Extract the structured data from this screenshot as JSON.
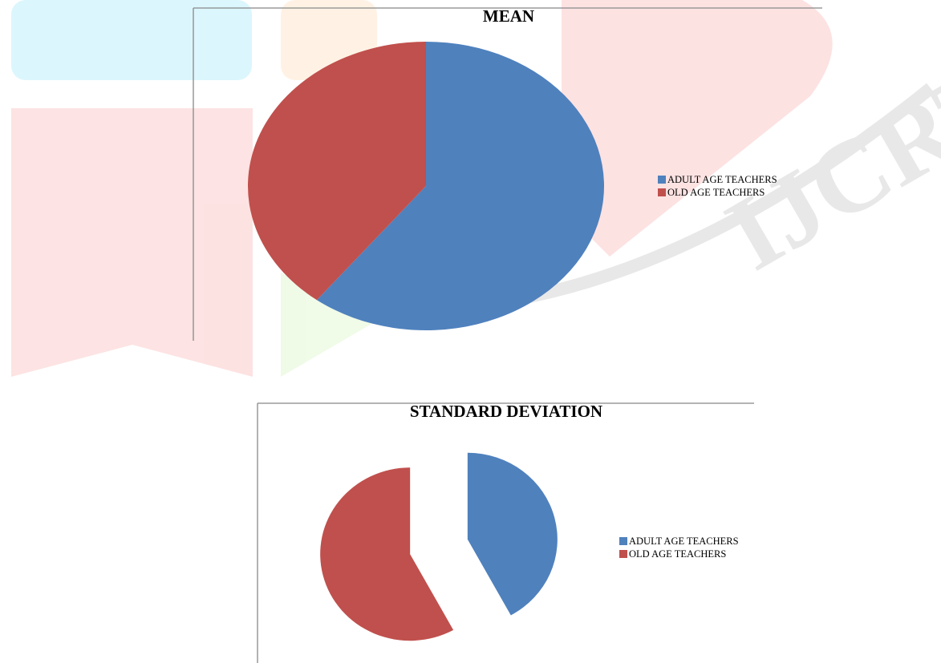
{
  "chart_data": [
    {
      "type": "pie",
      "title": "MEAN",
      "categories": [
        "ADULT AGE TEACHERS",
        "OLD AGE TEACHERS"
      ],
      "values": [
        60.5,
        39.5
      ],
      "colors": [
        "#4f81bd",
        "#c0504d"
      ],
      "exploded": false
    },
    {
      "type": "pie",
      "title": "STANDARD DEVIATION",
      "categories": [
        "ADULT AGE TEACHERS",
        "OLD AGE TEACHERS"
      ],
      "values": [
        42,
        58
      ],
      "colors": [
        "#4f81bd",
        "#c0504d"
      ],
      "exploded": true
    }
  ]
}
